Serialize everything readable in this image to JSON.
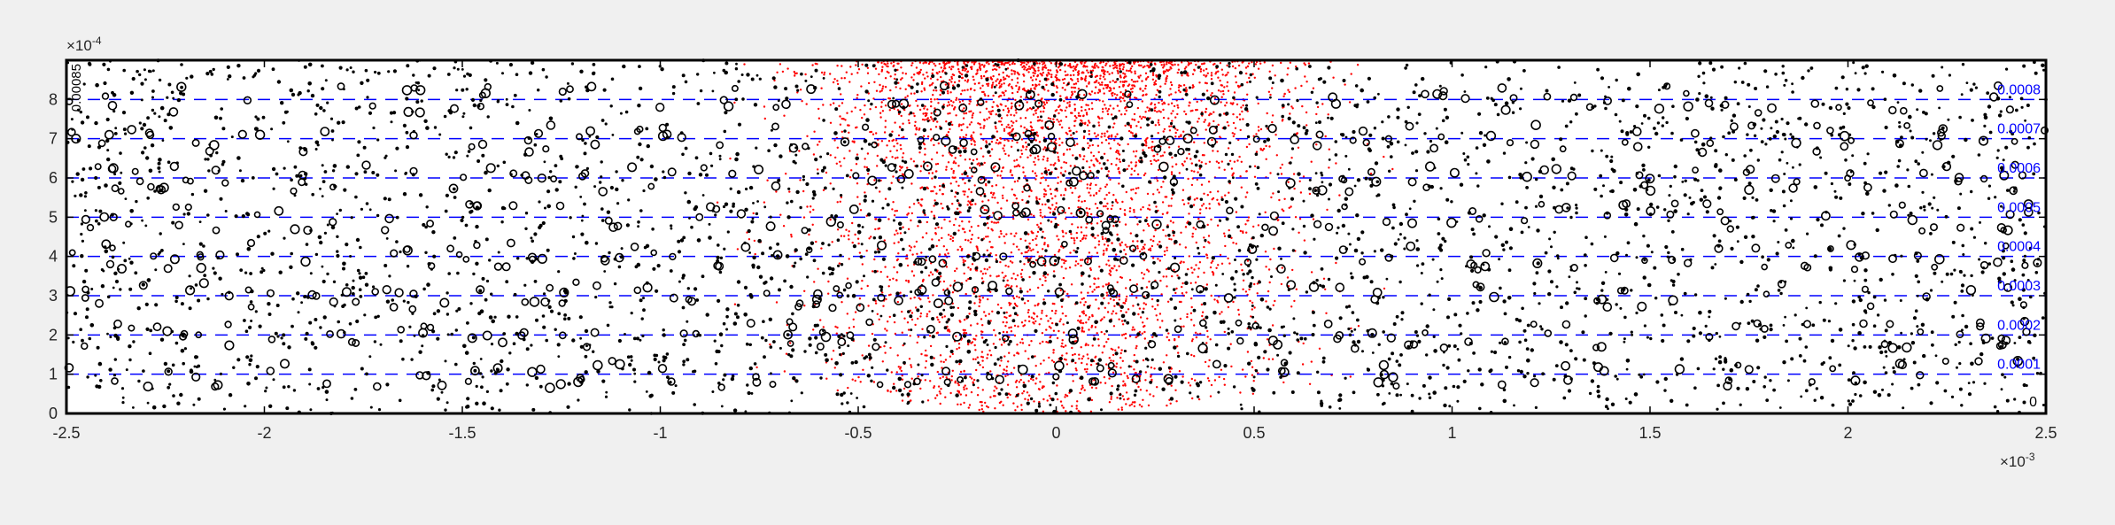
{
  "chart_data": {
    "type": "scatter",
    "title": "",
    "xlabel": "",
    "ylabel": "",
    "xlim": [
      -0.0025,
      0.0025
    ],
    "ylim": [
      0,
      0.0009
    ],
    "x_exponent_label": "×10",
    "x_exponent": "-3",
    "y_exponent_label": "×10",
    "y_exponent": "-4",
    "x_ticks": [
      {
        "value": -0.0025,
        "label": "-2.5"
      },
      {
        "value": -0.002,
        "label": "-2"
      },
      {
        "value": -0.0015,
        "label": "-1.5"
      },
      {
        "value": -0.001,
        "label": "-1"
      },
      {
        "value": -0.0005,
        "label": "-0.5"
      },
      {
        "value": 0,
        "label": "0"
      },
      {
        "value": 0.0005,
        "label": "0.5"
      },
      {
        "value": 0.001,
        "label": "1"
      },
      {
        "value": 0.0015,
        "label": "1.5"
      },
      {
        "value": 0.002,
        "label": "2"
      },
      {
        "value": 0.0025,
        "label": "2.5"
      }
    ],
    "y_ticks": [
      {
        "value": 0,
        "label": "0"
      },
      {
        "value": 0.0001,
        "label": "1"
      },
      {
        "value": 0.0002,
        "label": "2"
      },
      {
        "value": 0.0003,
        "label": "3"
      },
      {
        "value": 0.0004,
        "label": "4"
      },
      {
        "value": 0.0005,
        "label": "5"
      },
      {
        "value": 0.0006,
        "label": "6"
      },
      {
        "value": 0.0007,
        "label": "7"
      },
      {
        "value": 0.0008,
        "label": "8"
      }
    ],
    "grid": false,
    "contour_lines": {
      "color": "#0000ff",
      "style": "dashed",
      "levels": [
        {
          "y": 0.0001,
          "label": "0.0001"
        },
        {
          "y": 0.0002,
          "label": "0.0002"
        },
        {
          "y": 0.0003,
          "label": "0.0003"
        },
        {
          "y": 0.0004,
          "label": "0.0004"
        },
        {
          "y": 0.0005,
          "label": "0.0005"
        },
        {
          "y": 0.0006,
          "label": "0.0006"
        },
        {
          "y": 0.0007,
          "label": "0.0007"
        },
        {
          "y": 0.0008,
          "label": "0.0008"
        }
      ],
      "right_edge_label": "0",
      "left_edge_label": "0.00085"
    },
    "series": [
      {
        "kind": "black dots",
        "color": "#000000",
        "marker": "filled-dot",
        "count": 3100,
        "x_range": [
          -0.0025,
          0.0025
        ],
        "y_range": [
          0,
          0.0009
        ]
      },
      {
        "kind": "black circles",
        "color": "#000000",
        "marker": "open-circle",
        "count": 720,
        "x_range": [
          -0.0025,
          0.0025
        ],
        "y_range": [
          0,
          0.0009
        ],
        "arrangement": "rows near every 0.0001 level"
      },
      {
        "kind": "red points",
        "color": "#ff0000",
        "marker": "small-dot",
        "count": 4200,
        "center_x": 0,
        "center_y": 0.0009,
        "spread_x": 0.0009,
        "concentration": "densest near top center, fading below y=0.0003"
      }
    ],
    "colors": {
      "background": "#ffffff",
      "figure": "#f0f0f0",
      "axes": "#000000",
      "contour": "#0000ff",
      "highlight": "#ff0000"
    }
  }
}
